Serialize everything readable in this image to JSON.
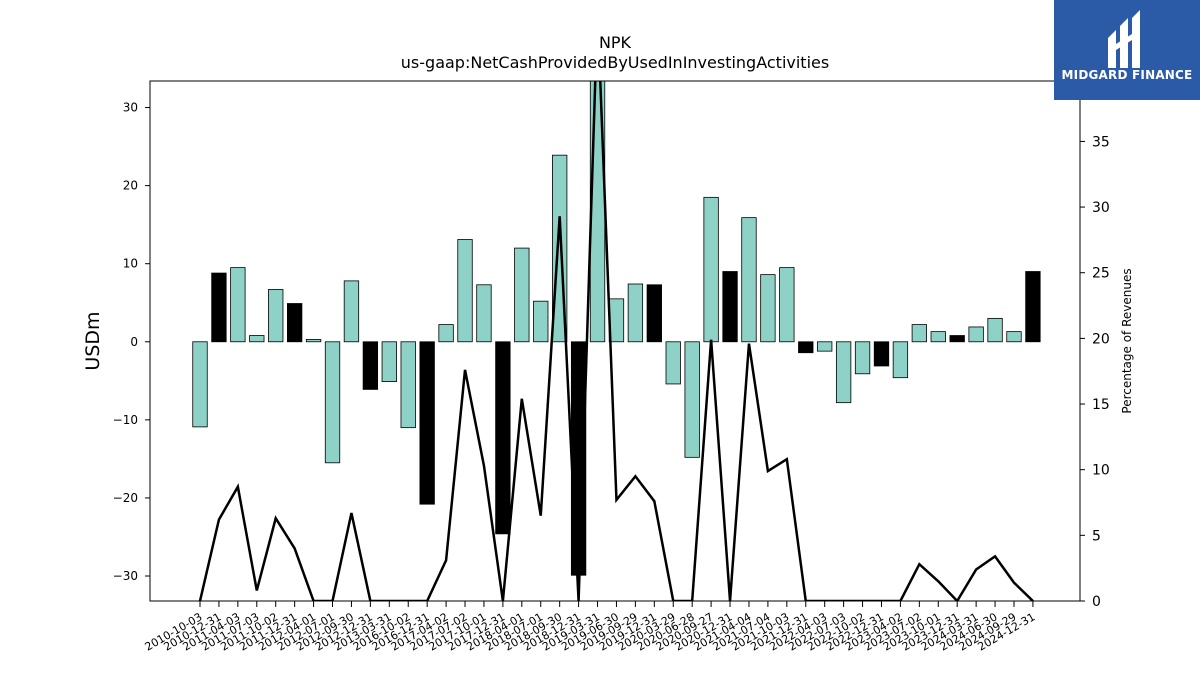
{
  "chart_data": {
    "type": "bar",
    "title": "NPK",
    "subtitle": "us-gaap:NetCashProvidedByUsedInInvestingActivities",
    "ylabel": "USDm",
    "y2label": "Percentage of Revenues",
    "ylim": [
      -33.2,
      33.4
    ],
    "y2lim": [
      0,
      39.6
    ],
    "yticks": [
      -30,
      -20,
      -10,
      0,
      10,
      20,
      30
    ],
    "y2ticks": [
      0,
      5,
      10,
      15,
      20,
      25,
      30,
      35
    ],
    "categories": [
      "2010-10-03",
      "2010-12-31",
      "2011-04-03",
      "2011-07-03",
      "2011-10-02",
      "2011-12-31",
      "2012-04-01",
      "2012-07-01",
      "2012-09-30",
      "2012-12-31",
      "2013-03-31",
      "2016-10-02",
      "2016-12-31",
      "2017-04-02",
      "2017-07-02",
      "2017-10-01",
      "2017-12-31",
      "2018-04-01",
      "2018-07-01",
      "2018-09-30",
      "2018-12-31",
      "2019-03-31",
      "2019-06-30",
      "2019-09-29",
      "2019-12-31",
      "2020-03-29",
      "2020-06-28",
      "2020-09-27",
      "2020-12-31",
      "2021-04-04",
      "2021-07-04",
      "2021-10-03",
      "2021-12-31",
      "2022-04-03",
      "2022-07-03",
      "2022-10-02",
      "2022-12-31",
      "2023-04-02",
      "2023-07-02",
      "2023-10-01",
      "2023-12-31",
      "2024-03-31",
      "2024-06-30",
      "2024-09-29",
      "2024-12-31"
    ],
    "values": [
      -10.9,
      8.8,
      9.5,
      0.8,
      6.7,
      4.9,
      0.3,
      -15.5,
      7.8,
      -6.1,
      -5.1,
      -11.0,
      -20.8,
      2.2,
      13.1,
      7.3,
      -24.6,
      12.0,
      5.2,
      23.9,
      -29.9,
      34.6,
      5.5,
      7.4,
      7.3,
      -5.4,
      -14.8,
      18.5,
      9.0,
      15.9,
      8.6,
      9.5,
      -1.4,
      -1.2,
      -7.8,
      -4.1,
      -3.1,
      -4.6,
      2.2,
      1.3,
      0.8,
      1.9,
      3.0,
      1.3,
      9.0
    ],
    "bar_colors": [
      "#8ed1c6",
      "#000000",
      "#8ed1c6",
      "#8ed1c6",
      "#8ed1c6",
      "#000000",
      "#8ed1c6",
      "#8ed1c6",
      "#8ed1c6",
      "#000000",
      "#8ed1c6",
      "#8ed1c6",
      "#000000",
      "#8ed1c6",
      "#8ed1c6",
      "#8ed1c6",
      "#000000",
      "#8ed1c6",
      "#8ed1c6",
      "#8ed1c6",
      "#000000",
      "#8ed1c6",
      "#8ed1c6",
      "#8ed1c6",
      "#000000",
      "#8ed1c6",
      "#8ed1c6",
      "#8ed1c6",
      "#000000",
      "#8ed1c6",
      "#8ed1c6",
      "#8ed1c6",
      "#000000",
      "#8ed1c6",
      "#8ed1c6",
      "#8ed1c6",
      "#000000",
      "#8ed1c6",
      "#8ed1c6",
      "#8ed1c6",
      "#000000",
      "#8ed1c6",
      "#8ed1c6",
      "#8ed1c6",
      "#000000"
    ],
    "line_values": [
      0,
      6.2,
      8.7,
      0.8,
      6.3,
      4.0,
      0,
      0,
      6.7,
      0,
      0,
      0,
      0,
      3.1,
      17.6,
      10.3,
      0,
      15.4,
      6.5,
      29.3,
      0,
      45,
      7.7,
      9.5,
      7.6,
      0,
      0,
      19.9,
      0,
      19.6,
      9.9,
      10.8,
      0,
      0,
      0,
      0,
      0,
      0,
      2.8,
      1.5,
      0,
      2.4,
      3.4,
      1.4,
      0
    ],
    "legend": "none",
    "grid": false
  },
  "logo": {
    "text": "MIDGARD FINANCE"
  }
}
